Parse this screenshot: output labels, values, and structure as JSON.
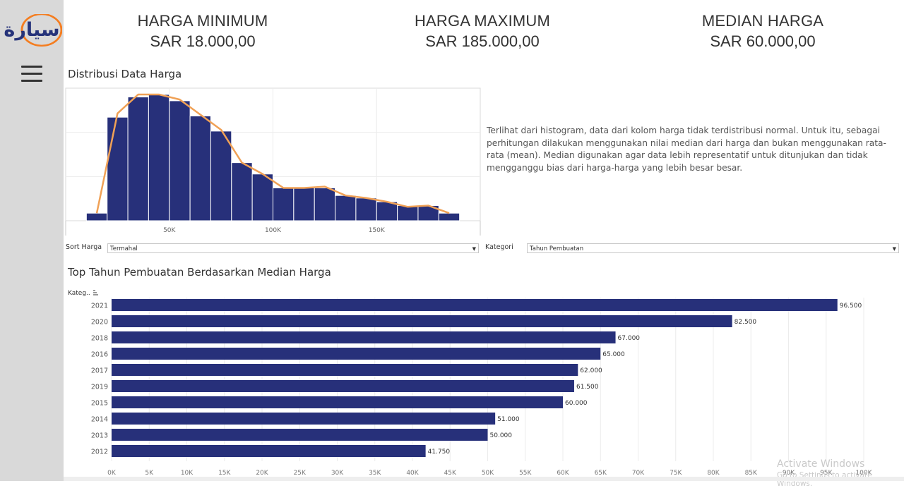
{
  "app": {
    "logo_text": "سيارة",
    "accent": "#f47d20",
    "logo_color": "#26337a"
  },
  "kpis": [
    {
      "title": "HARGA MINIMUM",
      "value": "SAR 18.000,00"
    },
    {
      "title": "HARGA MAXIMUM",
      "value": "SAR 185.000,00"
    },
    {
      "title": "MEDIAN HARGA",
      "value": "SAR 60.000,00"
    }
  ],
  "histogram": {
    "title": "Distribusi Data Harga",
    "note": "Terlihat dari histogram, data dari kolom harga tidak terdistribusi normal. Untuk itu, sebagai perhitungan dilakukan menggunakan nilai median dari harga dan bukan menggunakan rata-rata (mean). Median digunakan agar data lebih representatif untuk ditunjukan dan tidak mengganggu bias dari harga-harga yang lebih besar besar."
  },
  "filters": {
    "sort_label": "Sort Harga",
    "sort_value": "Termahal",
    "category_label": "Kategori",
    "category_value": "Tahun Pembuatan"
  },
  "bar_chart": {
    "title": "Top Tahun Pembuatan Berdasarkan Median Harga",
    "axis_header": "Kateg.."
  },
  "watermark": {
    "line1": "Activate Windows",
    "line2": "Go to Settings to activate Windows."
  },
  "colors": {
    "bar": "#27307a",
    "line": "#f0a156",
    "grid": "#ececec"
  },
  "chart_data": [
    {
      "type": "bar",
      "title": "Distribusi Data Harga",
      "xlabel": "",
      "ylabel": "",
      "bin_edges": [
        10000,
        20000,
        30000,
        40000,
        50000,
        60000,
        70000,
        80000,
        90000,
        100000,
        110000,
        120000,
        130000,
        140000,
        150000,
        160000,
        170000,
        180000,
        190000
      ],
      "values": [
        6,
        82,
        98,
        100,
        95,
        83,
        71,
        46,
        37,
        26,
        26,
        26,
        20,
        18,
        15,
        12,
        12,
        6
      ],
      "line_values": [
        6,
        85,
        100,
        100,
        96,
        84,
        72,
        46,
        37,
        26,
        26,
        27,
        20,
        18,
        15,
        11,
        12,
        6
      ],
      "xticks": [
        "50K",
        "100K",
        "150K"
      ],
      "xtick_values": [
        50000,
        100000,
        150000
      ],
      "ylim": [
        0,
        105
      ],
      "grid": true
    },
    {
      "type": "bar",
      "orientation": "horizontal",
      "title": "Top Tahun Pembuatan Berdasarkan Median Harga",
      "categories": [
        "2021",
        "2020",
        "2018",
        "2016",
        "2017",
        "2019",
        "2015",
        "2014",
        "2013",
        "2012"
      ],
      "values": [
        96500,
        82500,
        67000,
        65000,
        62000,
        61500,
        60000,
        51000,
        50000,
        41750
      ],
      "labels": [
        "96.500",
        "82.500",
        "67.000",
        "65.000",
        "62.000",
        "61.500",
        "60.000",
        "51.000",
        "50.000",
        "41.750"
      ],
      "xticks": [
        "0K",
        "5K",
        "10K",
        "15K",
        "20K",
        "25K",
        "30K",
        "35K",
        "40K",
        "45K",
        "50K",
        "55K",
        "60K",
        "65K",
        "70K",
        "75K",
        "80K",
        "85K",
        "90K",
        "95K",
        "100K"
      ],
      "xlim": [
        0,
        100000
      ],
      "grid": true
    }
  ]
}
